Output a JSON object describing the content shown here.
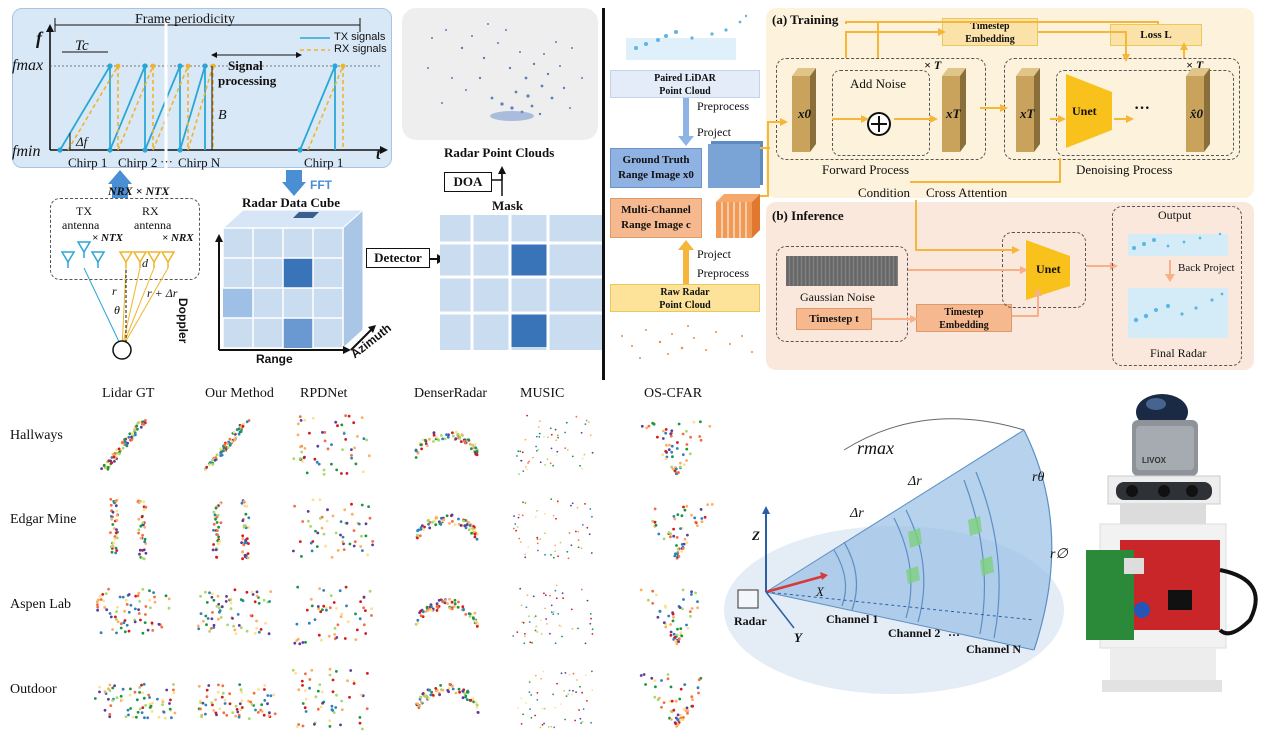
{
  "signal": {
    "frame_periodicity": "Frame periodicity",
    "f_axis": "f",
    "f_max": "fmax",
    "f_min": "fmin",
    "t_axis": "t",
    "tc": "Tc",
    "delta_f": "Δf",
    "bandwidth": "B",
    "legend_tx": "TX signals",
    "legend_rx": "RX signals",
    "signal_processing_1": "Signal",
    "signal_processing_2": "processing",
    "chirp1": "Chirp 1",
    "chirp2": "Chirp 2",
    "chirp_dots": "···",
    "chirpN": "Chirp N",
    "chirp1b": "Chirp 1",
    "nrx_ntx": "NRX × NTX",
    "fft": "FFT"
  },
  "antenna": {
    "tx_line1": "TX",
    "tx_line2": "antenna",
    "tx_mult": "× NTX",
    "rx_line1": "RX",
    "rx_line2": "antenna",
    "rx_mult": "× NRX",
    "d": "d",
    "r": "r",
    "r_dr": "r + Δr",
    "theta": "θ"
  },
  "cube": {
    "title": "Radar Data Cube",
    "doppler": "Doppler",
    "range": "Range",
    "azimuth": "Azimuth",
    "detector": "Detector"
  },
  "pointcloud": {
    "title": "Radar Point Clouds",
    "doa": "DOA",
    "mask": "Mask"
  },
  "pipeline": {
    "paired_lidar_1": "Paired LiDAR",
    "paired_lidar_2": "Point Cloud",
    "preprocess_top": "Preprocess",
    "project_top": "Project",
    "gt_1": "Ground Truth",
    "gt_2": "Range Image x0",
    "mc_1": "Multi-Channel",
    "mc_2": "Range Image c",
    "project_bottom": "Project",
    "preprocess_bottom": "Preprocess",
    "raw_1": "Raw Radar",
    "raw_2": "Point Cloud"
  },
  "training": {
    "title": "(a) Training",
    "timestep_emb_1": "Timestep",
    "timestep_emb_2": "Embedding",
    "loss": "Loss L",
    "times_t_1": "× T",
    "times_t_2": "× T",
    "add_noise": "Add Noise",
    "x0": "x0",
    "xT": "xT",
    "xT2": "xT",
    "unet": "Unet",
    "dots": "···",
    "x0hat": "x̂0",
    "forward": "Forward Process",
    "denoising": "Denoising Process",
    "condition": "Condition",
    "cross_attention": "Cross Attention"
  },
  "inference": {
    "title": "(b) Inference",
    "gaussian": "Gaussian Noise",
    "timestep_t": "Timestep t",
    "timestep_emb_1": "Timestep",
    "timestep_emb_2": "Embedding",
    "unet": "Unet",
    "output": "Output",
    "back_project": "Back Project",
    "final_radar": "Final Radar"
  },
  "comparison": {
    "columns": [
      "Lidar GT",
      "Our Method",
      "RPDNet",
      "DenserRadar",
      "MUSIC",
      "OS-CFAR"
    ],
    "rows": [
      "Hallways",
      "Edgar Mine",
      "Aspen Lab",
      "Outdoor"
    ]
  },
  "geometry": {
    "r_max": "rmax",
    "delta_r_1": "Δr",
    "delta_r_2": "Δr",
    "r_theta": "rθ",
    "r_phi": "r∅",
    "z": "Z",
    "x": "X",
    "y": "Y",
    "radar": "Radar",
    "channel1": "Channel 1",
    "channel2": "Channel 2",
    "channel_dots": "···",
    "channelN": "Channel N"
  },
  "hardware": {
    "livox": "LIVOX"
  },
  "colors": {
    "tx": "#2aa7d6",
    "rx": "#f0b429",
    "panel_blue": "#d7e6f6",
    "training_bg": "#fdf3dc",
    "inference_bg": "#fbe8dc",
    "cube_cell": "#c9dcf0",
    "cube_dark": "#3a74b8",
    "arrow_blue": "#4a8fd4",
    "arrow_orange": "#f5b63a",
    "unet_yellow": "#f9c11c"
  }
}
